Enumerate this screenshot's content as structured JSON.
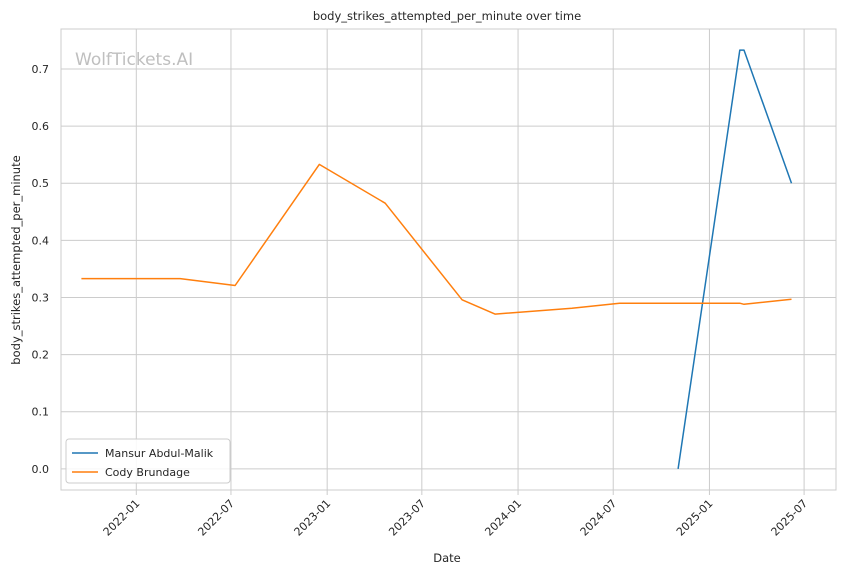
{
  "chart_data": {
    "type": "line",
    "title": "body_strikes_attempted_per_minute over time",
    "xlabel": "Date",
    "ylabel": "body_strikes_attempted_per_minute",
    "watermark": "WolfTickets.AI",
    "grid": true,
    "legend_position": "lower-left",
    "x_range": [
      "2021-08-10",
      "2025-08-31"
    ],
    "ylim": [
      -0.037,
      0.77
    ],
    "x_ticks": [
      "2022-01",
      "2022-07",
      "2023-01",
      "2023-07",
      "2024-01",
      "2024-07",
      "2025-01",
      "2025-07"
    ],
    "y_ticks": [
      "0.0",
      "0.1",
      "0.2",
      "0.3",
      "0.4",
      "0.5",
      "0.6",
      "0.7"
    ],
    "series": [
      {
        "name": "Mansur Abdul-Malik",
        "color": "#1f77b4",
        "points": [
          {
            "x": "2024-11-02",
            "y": 0.0
          },
          {
            "x": "2025-02-28",
            "y": 0.733
          },
          {
            "x": "2025-03-08",
            "y": 0.733
          },
          {
            "x": "2025-06-07",
            "y": 0.5
          }
        ]
      },
      {
        "name": "Cody Brundage",
        "color": "#ff7f0e",
        "points": [
          {
            "x": "2021-09-18",
            "y": 0.333
          },
          {
            "x": "2022-03-26",
            "y": 0.333
          },
          {
            "x": "2022-07-09",
            "y": 0.321
          },
          {
            "x": "2022-12-17",
            "y": 0.533
          },
          {
            "x": "2023-04-22",
            "y": 0.465
          },
          {
            "x": "2023-09-16",
            "y": 0.296
          },
          {
            "x": "2023-11-18",
            "y": 0.271
          },
          {
            "x": "2024-04-13",
            "y": 0.281
          },
          {
            "x": "2024-07-13",
            "y": 0.29
          },
          {
            "x": "2025-02-28",
            "y": 0.29
          },
          {
            "x": "2025-03-08",
            "y": 0.288
          },
          {
            "x": "2025-06-07",
            "y": 0.297
          }
        ]
      }
    ]
  }
}
